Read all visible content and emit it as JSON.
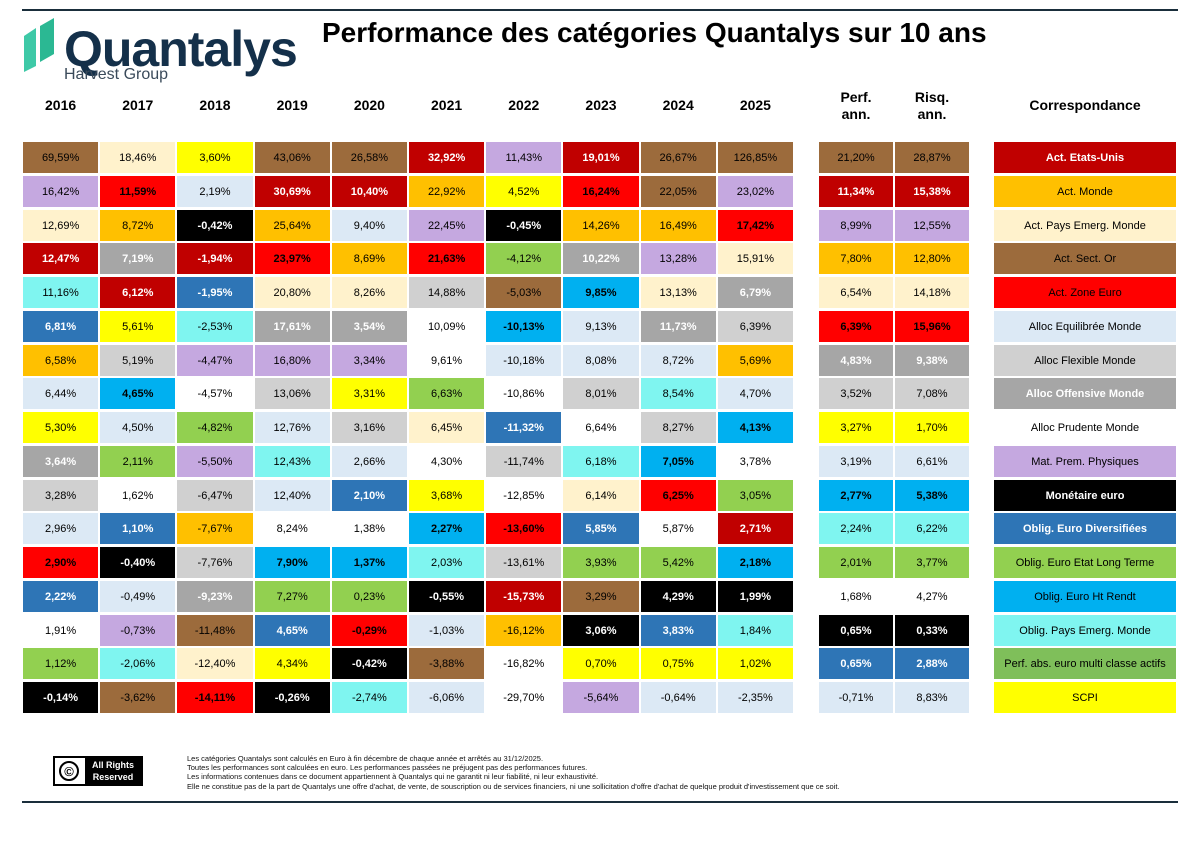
{
  "logo": {
    "name": "Quantalys",
    "subtitle": "Harvest Group",
    "mark_icon": "quantalys-logo-icon"
  },
  "title": "Performance des catégories Quantalys sur 10 ans",
  "years": [
    "2016",
    "2017",
    "2018",
    "2019",
    "2020",
    "2021",
    "2022",
    "2023",
    "2024",
    "2025"
  ],
  "headers": {
    "perf": "Perf.\nann.",
    "risk": "Risq.\nann.",
    "correspondance": "Correspondance"
  },
  "categories": [
    {
      "name": "Act. Etats-Unis",
      "bg": "#c00000",
      "fg": "#ffffff"
    },
    {
      "name": "Act. Monde",
      "bg": "#ffc000",
      "fg": "#000000"
    },
    {
      "name": "Act. Pays Emerg. Monde",
      "bg": "#fff2cc",
      "fg": "#000000"
    },
    {
      "name": "Act. Sect. Or",
      "bg": "#9c6b3c",
      "fg": "#000000"
    },
    {
      "name": "Act. Zone Euro",
      "bg": "#ff0000",
      "fg": "#000000"
    },
    {
      "name": "Alloc Equilibrée Monde",
      "bg": "#dce9f5",
      "fg": "#000000"
    },
    {
      "name": "Alloc Flexible Monde",
      "bg": "#d0d0d0",
      "fg": "#000000"
    },
    {
      "name": "Alloc Offensive Monde",
      "bg": "#a6a6a6",
      "fg": "#ffffff"
    },
    {
      "name": "Alloc Prudente Monde",
      "bg": "#ffffff",
      "fg": "#000000"
    },
    {
      "name": "Mat. Prem. Physiques",
      "bg": "#c5a8e0",
      "fg": "#000000"
    },
    {
      "name": "Monétaire euro",
      "bg": "#000000",
      "fg": "#ffffff"
    },
    {
      "name": "Oblig. Euro Diversifiées",
      "bg": "#2e75b6",
      "fg": "#ffffff"
    },
    {
      "name": "Oblig. Euro Etat Long Terme",
      "bg": "#92d050",
      "fg": "#000000"
    },
    {
      "name": "Oblig. Euro Ht Rendt",
      "bg": "#00b0f0",
      "fg": "#000000"
    },
    {
      "name": "Oblig. Pays Emerg. Monde",
      "bg": "#7ff5f0",
      "fg": "#000000"
    },
    {
      "name": "Perf. abs. euro multi classe actifs",
      "bg": "#7fbf5a",
      "fg": "#000000"
    },
    {
      "name": "SCPI",
      "bg": "#ffff00",
      "fg": "#000000"
    }
  ],
  "columns": [
    [
      [
        3,
        "69,59%"
      ],
      [
        9,
        "16,42%"
      ],
      [
        2,
        "12,69%"
      ],
      [
        0,
        "12,47%"
      ],
      [
        14,
        "11,16%"
      ],
      [
        11,
        "6,81%"
      ],
      [
        1,
        "6,58%"
      ],
      [
        5,
        "6,44%"
      ],
      [
        16,
        "5,30%"
      ],
      [
        7,
        "3,64%"
      ],
      [
        6,
        "3,28%"
      ],
      [
        5,
        "2,96%"
      ],
      [
        4,
        "2,90%"
      ],
      [
        11,
        "2,22%"
      ],
      [
        8,
        "1,91%"
      ],
      [
        12,
        "1,12%"
      ],
      [
        10,
        "-0,14%"
      ]
    ],
    [
      [
        2,
        "18,46%"
      ],
      [
        4,
        "11,59%"
      ],
      [
        1,
        "8,72%"
      ],
      [
        7,
        "7,19%"
      ],
      [
        0,
        "6,12%"
      ],
      [
        16,
        "5,61%"
      ],
      [
        6,
        "5,19%"
      ],
      [
        13,
        "4,65%"
      ],
      [
        5,
        "4,50%"
      ],
      [
        12,
        "2,11%"
      ],
      [
        8,
        "1,62%"
      ],
      [
        11,
        "1,10%"
      ],
      [
        10,
        "-0,40%"
      ],
      [
        5,
        "-0,49%"
      ],
      [
        9,
        "-0,73%"
      ],
      [
        14,
        "-2,06%"
      ],
      [
        3,
        "-3,62%"
      ]
    ],
    [
      [
        16,
        "3,60%"
      ],
      [
        5,
        "2,19%"
      ],
      [
        10,
        "-0,42%"
      ],
      [
        0,
        "-1,94%"
      ],
      [
        11,
        "-1,95%"
      ],
      [
        14,
        "-2,53%"
      ],
      [
        9,
        "-4,47%"
      ],
      [
        8,
        "-4,57%"
      ],
      [
        12,
        "-4,82%"
      ],
      [
        9,
        "-5,50%"
      ],
      [
        6,
        "-6,47%"
      ],
      [
        1,
        "-7,67%"
      ],
      [
        6,
        "-7,76%"
      ],
      [
        7,
        "-9,23%"
      ],
      [
        3,
        "-11,48%"
      ],
      [
        2,
        "-12,40%"
      ],
      [
        4,
        "-14,11%"
      ]
    ],
    [
      [
        3,
        "43,06%"
      ],
      [
        0,
        "30,69%"
      ],
      [
        1,
        "25,64%"
      ],
      [
        4,
        "23,97%"
      ],
      [
        2,
        "20,80%"
      ],
      [
        7,
        "17,61%"
      ],
      [
        9,
        "16,80%"
      ],
      [
        6,
        "13,06%"
      ],
      [
        5,
        "12,76%"
      ],
      [
        14,
        "12,43%"
      ],
      [
        5,
        "12,40%"
      ],
      [
        8,
        "8,24%"
      ],
      [
        13,
        "7,90%"
      ],
      [
        12,
        "7,27%"
      ],
      [
        11,
        "4,65%"
      ],
      [
        16,
        "4,34%"
      ],
      [
        10,
        "-0,26%"
      ]
    ],
    [
      [
        3,
        "26,58%"
      ],
      [
        0,
        "10,40%"
      ],
      [
        5,
        "9,40%"
      ],
      [
        1,
        "8,69%"
      ],
      [
        2,
        "8,26%"
      ],
      [
        7,
        "3,54%"
      ],
      [
        9,
        "3,34%"
      ],
      [
        16,
        "3,31%"
      ],
      [
        6,
        "3,16%"
      ],
      [
        5,
        "2,66%"
      ],
      [
        11,
        "2,10%"
      ],
      [
        8,
        "1,38%"
      ],
      [
        13,
        "1,37%"
      ],
      [
        12,
        "0,23%"
      ],
      [
        4,
        "-0,29%"
      ],
      [
        10,
        "-0,42%"
      ],
      [
        14,
        "-2,74%"
      ]
    ],
    [
      [
        0,
        "32,92%"
      ],
      [
        1,
        "22,92%"
      ],
      [
        9,
        "22,45%"
      ],
      [
        4,
        "21,63%"
      ],
      [
        6,
        "14,88%"
      ],
      [
        8,
        "10,09%"
      ],
      [
        8,
        "9,61%"
      ],
      [
        12,
        "6,63%"
      ],
      [
        2,
        "6,45%"
      ],
      [
        8,
        "4,30%"
      ],
      [
        16,
        "3,68%"
      ],
      [
        13,
        "2,27%"
      ],
      [
        14,
        "2,03%"
      ],
      [
        10,
        "-0,55%"
      ],
      [
        5,
        "-1,03%"
      ],
      [
        3,
        "-3,88%"
      ],
      [
        5,
        "-6,06%"
      ]
    ],
    [
      [
        9,
        "11,43%"
      ],
      [
        16,
        "4,52%"
      ],
      [
        10,
        "-0,45%"
      ],
      [
        12,
        "-4,12%"
      ],
      [
        3,
        "-5,03%"
      ],
      [
        13,
        "-10,13%"
      ],
      [
        5,
        "-10,18%"
      ],
      [
        8,
        "-10,86%"
      ],
      [
        11,
        "-11,32%"
      ],
      [
        6,
        "-11,74%"
      ],
      [
        8,
        "-12,85%"
      ],
      [
        4,
        "-13,60%"
      ],
      [
        6,
        "-13,61%"
      ],
      [
        0,
        "-15,73%"
      ],
      [
        1,
        "-16,12%"
      ],
      [
        8,
        "-16,82%"
      ],
      [
        8,
        "-29,70%"
      ]
    ],
    [
      [
        0,
        "19,01%"
      ],
      [
        4,
        "16,24%"
      ],
      [
        1,
        "14,26%"
      ],
      [
        7,
        "10,22%"
      ],
      [
        13,
        "9,85%"
      ],
      [
        5,
        "9,13%"
      ],
      [
        5,
        "8,08%"
      ],
      [
        6,
        "8,01%"
      ],
      [
        8,
        "6,64%"
      ],
      [
        14,
        "6,18%"
      ],
      [
        2,
        "6,14%"
      ],
      [
        11,
        "5,85%"
      ],
      [
        12,
        "3,93%"
      ],
      [
        3,
        "3,29%"
      ],
      [
        10,
        "3,06%"
      ],
      [
        16,
        "0,70%"
      ],
      [
        9,
        "-5,64%"
      ]
    ],
    [
      [
        3,
        "26,67%"
      ],
      [
        3,
        "22,05%"
      ],
      [
        1,
        "16,49%"
      ],
      [
        9,
        "13,28%"
      ],
      [
        2,
        "13,13%"
      ],
      [
        7,
        "11,73%"
      ],
      [
        5,
        "8,72%"
      ],
      [
        14,
        "8,54%"
      ],
      [
        6,
        "8,27%"
      ],
      [
        13,
        "7,05%"
      ],
      [
        4,
        "6,25%"
      ],
      [
        8,
        "5,87%"
      ],
      [
        12,
        "5,42%"
      ],
      [
        10,
        "4,29%"
      ],
      [
        11,
        "3,83%"
      ],
      [
        16,
        "0,75%"
      ],
      [
        5,
        "-0,64%"
      ]
    ],
    [
      [
        3,
        "126,85%"
      ],
      [
        9,
        "23,02%"
      ],
      [
        4,
        "17,42%"
      ],
      [
        2,
        "15,91%"
      ],
      [
        7,
        "6,79%"
      ],
      [
        6,
        "6,39%"
      ],
      [
        1,
        "5,69%"
      ],
      [
        5,
        "4,70%"
      ],
      [
        13,
        "4,13%"
      ],
      [
        8,
        "3,78%"
      ],
      [
        12,
        "3,05%"
      ],
      [
        0,
        "2,71%"
      ],
      [
        13,
        "2,18%"
      ],
      [
        10,
        "1,99%"
      ],
      [
        14,
        "1,84%"
      ],
      [
        16,
        "1,02%"
      ],
      [
        5,
        "-2,35%"
      ]
    ]
  ],
  "perf_column": [
    [
      3,
      "21,20%"
    ],
    [
      0,
      "11,34%"
    ],
    [
      9,
      "8,99%"
    ],
    [
      1,
      "7,80%"
    ],
    [
      2,
      "6,54%"
    ],
    [
      4,
      "6,39%"
    ],
    [
      7,
      "4,83%"
    ],
    [
      6,
      "3,52%"
    ],
    [
      16,
      "3,27%"
    ],
    [
      5,
      "3,19%"
    ],
    [
      13,
      "2,77%"
    ],
    [
      14,
      "2,24%"
    ],
    [
      12,
      "2,01%"
    ],
    [
      8,
      "1,68%"
    ],
    [
      10,
      "0,65%"
    ],
    [
      11,
      "0,65%"
    ],
    [
      5,
      "-0,71%"
    ]
  ],
  "risk_column": [
    [
      3,
      "28,87%"
    ],
    [
      0,
      "15,38%"
    ],
    [
      9,
      "12,55%"
    ],
    [
      1,
      "12,80%"
    ],
    [
      2,
      "14,18%"
    ],
    [
      4,
      "15,96%"
    ],
    [
      7,
      "9,38%"
    ],
    [
      6,
      "7,08%"
    ],
    [
      16,
      "1,70%"
    ],
    [
      5,
      "6,61%"
    ],
    [
      13,
      "5,38%"
    ],
    [
      14,
      "6,22%"
    ],
    [
      12,
      "3,77%"
    ],
    [
      8,
      "4,27%"
    ],
    [
      10,
      "0,33%"
    ],
    [
      11,
      "2,88%"
    ],
    [
      5,
      "8,83%"
    ]
  ],
  "rights": {
    "icon": "copyright-icon",
    "symbol": "©",
    "line1": "All Rights",
    "line2": "Reserved"
  },
  "footer_lines": [
    "Les catégories Quantalys sont calculés en Euro à fin décembre de chaque année et arrêtés au 31/12/2025.",
    "Toutes les performances sont calculées en euro. Les performances passées ne préjugent pas des performances futures.",
    "Les informations contenues dans ce document appartiennent à Quantalys qui ne garantit ni leur fiabilité, ni leur exhaustivité.",
    "Elle ne constitue pas de la part de Quantalys une offre d'achat, de vente, de souscription ou de services financiers, ni une sollicitation d'offre d'achat de quelque produit d'investissement que ce soit."
  ]
}
